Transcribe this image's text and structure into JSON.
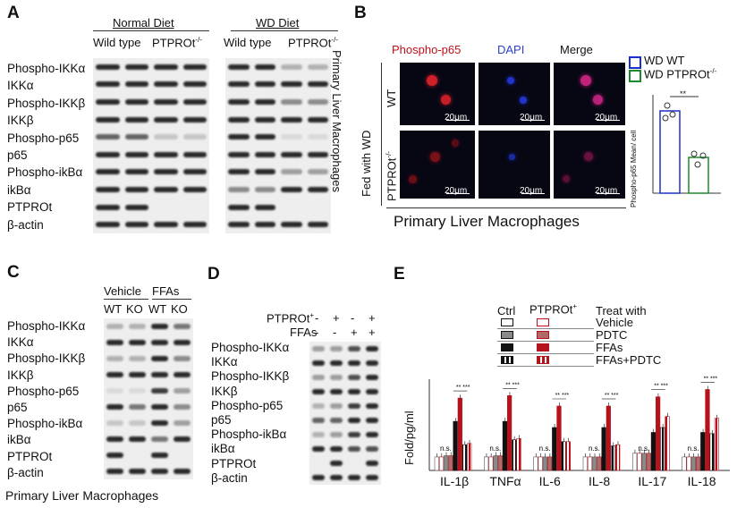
{
  "panelA": {
    "letter": "A",
    "group_normal": "Normal Diet",
    "group_wd": "WD Diet",
    "col_wt": "Wild type",
    "col_ko": "PTPROt",
    "ko_sup": "-/-",
    "rows": [
      "Phospho-IKKα",
      "IKKα",
      "Phospho-IKKβ",
      "IKKβ",
      "Phospho-p65",
      "p65",
      "Phospho-ikBα",
      "ikBα",
      "PTPROt",
      "β-actin"
    ],
    "side": "Primary Liver Macrophages"
  },
  "panelB": {
    "letter": "B",
    "col1": "Phospho-p65",
    "col2": "DAPI",
    "col3": "Merge",
    "fed": "Fed with WD",
    "row_wt": "WT",
    "row_ko": "PTPROt",
    "ko_sup": "-/-",
    "scale": "20μm",
    "caption": "Primary Liver Macrophages",
    "legend_wt": "WD WT",
    "legend_ko": "WD PTPROt",
    "ylabel": "Phospho-p65 Mean/ cell",
    "sig": "**"
  },
  "panelC": {
    "letter": "C",
    "group_vehicle": "Vehicle",
    "group_ffas": "FFAs",
    "cols": [
      "WT",
      "KO",
      "WT",
      "KO"
    ],
    "rows": [
      "Phospho-IKKα",
      "IKKα",
      "Phospho-IKKβ",
      "IKKβ",
      "Phospho-p65",
      "p65",
      "Phospho-ikBα",
      "ikBα",
      "PTPROt",
      "β-actin"
    ],
    "caption": "Primary Liver Macrophages"
  },
  "panelD": {
    "letter": "D",
    "treat1": "PTPROt",
    "treat1_sup": "+",
    "treat2": "FFAs",
    "treat1_signs": [
      "-",
      "+",
      "-",
      "+"
    ],
    "treat2_signs": [
      "-",
      "-",
      "+",
      "+"
    ],
    "rows": [
      "Phospho-IKKα",
      "IKKα",
      "Phospho-IKKβ",
      "IKKβ",
      "Phospho-p65",
      "p65",
      "Phospho-ikBα",
      "ikBα",
      "PTPROt",
      "β-actin"
    ]
  },
  "panelE": {
    "letter": "E",
    "legend_ctrl": "Ctrl",
    "legend_ptpro": "PTPROt",
    "legend_ptpro_sup": "+",
    "legend_treat": "Treat with",
    "legend_rows": [
      "Vehicle",
      "PDTC",
      "FFAs",
      "FFAs+PDTC"
    ],
    "ylabel": "Fold/pg/ml",
    "ns": "n.s.",
    "colors": {
      "white": "#ffffff",
      "pink": "#f2c9c9",
      "gray": "#8a8a8a",
      "rose": "#b06a6a",
      "black": "#111111",
      "red": "#b5121b"
    }
  },
  "chart_data": {
    "type": "bar",
    "categories": [
      "IL-1β",
      "TNFα",
      "IL-6",
      "IL-8",
      "IL-17",
      "IL-18"
    ],
    "series": [
      {
        "name": "Ctrl Vehicle",
        "values": [
          22,
          22,
          22,
          22,
          28,
          22
        ]
      },
      {
        "name": "Ctrl PDTC",
        "values": [
          24,
          24,
          22,
          22,
          28,
          22
        ]
      },
      {
        "name": "Ctrl FFAs",
        "values": [
          80,
          80,
          70,
          70,
          62,
          62
        ]
      },
      {
        "name": "Ctrl FFAs+PDTC",
        "values": [
          42,
          50,
          47,
          40,
          70,
          60
        ]
      },
      {
        "name": "PTPROt+ Vehicle",
        "values": [
          22,
          22,
          22,
          22,
          28,
          22
        ]
      },
      {
        "name": "PTPROt+ PDTC",
        "values": [
          24,
          24,
          22,
          22,
          28,
          22
        ]
      },
      {
        "name": "PTPROt+ FFAs",
        "values": [
          118,
          122,
          105,
          105,
          120,
          132
        ]
      },
      {
        "name": "PTPROt+ FFAs+PDTC",
        "values": [
          44,
          52,
          47,
          42,
          88,
          85
        ]
      }
    ],
    "xlabel": "",
    "ylabel": "Fold/pg/ml",
    "ylim": [
      0,
      140
    ]
  }
}
